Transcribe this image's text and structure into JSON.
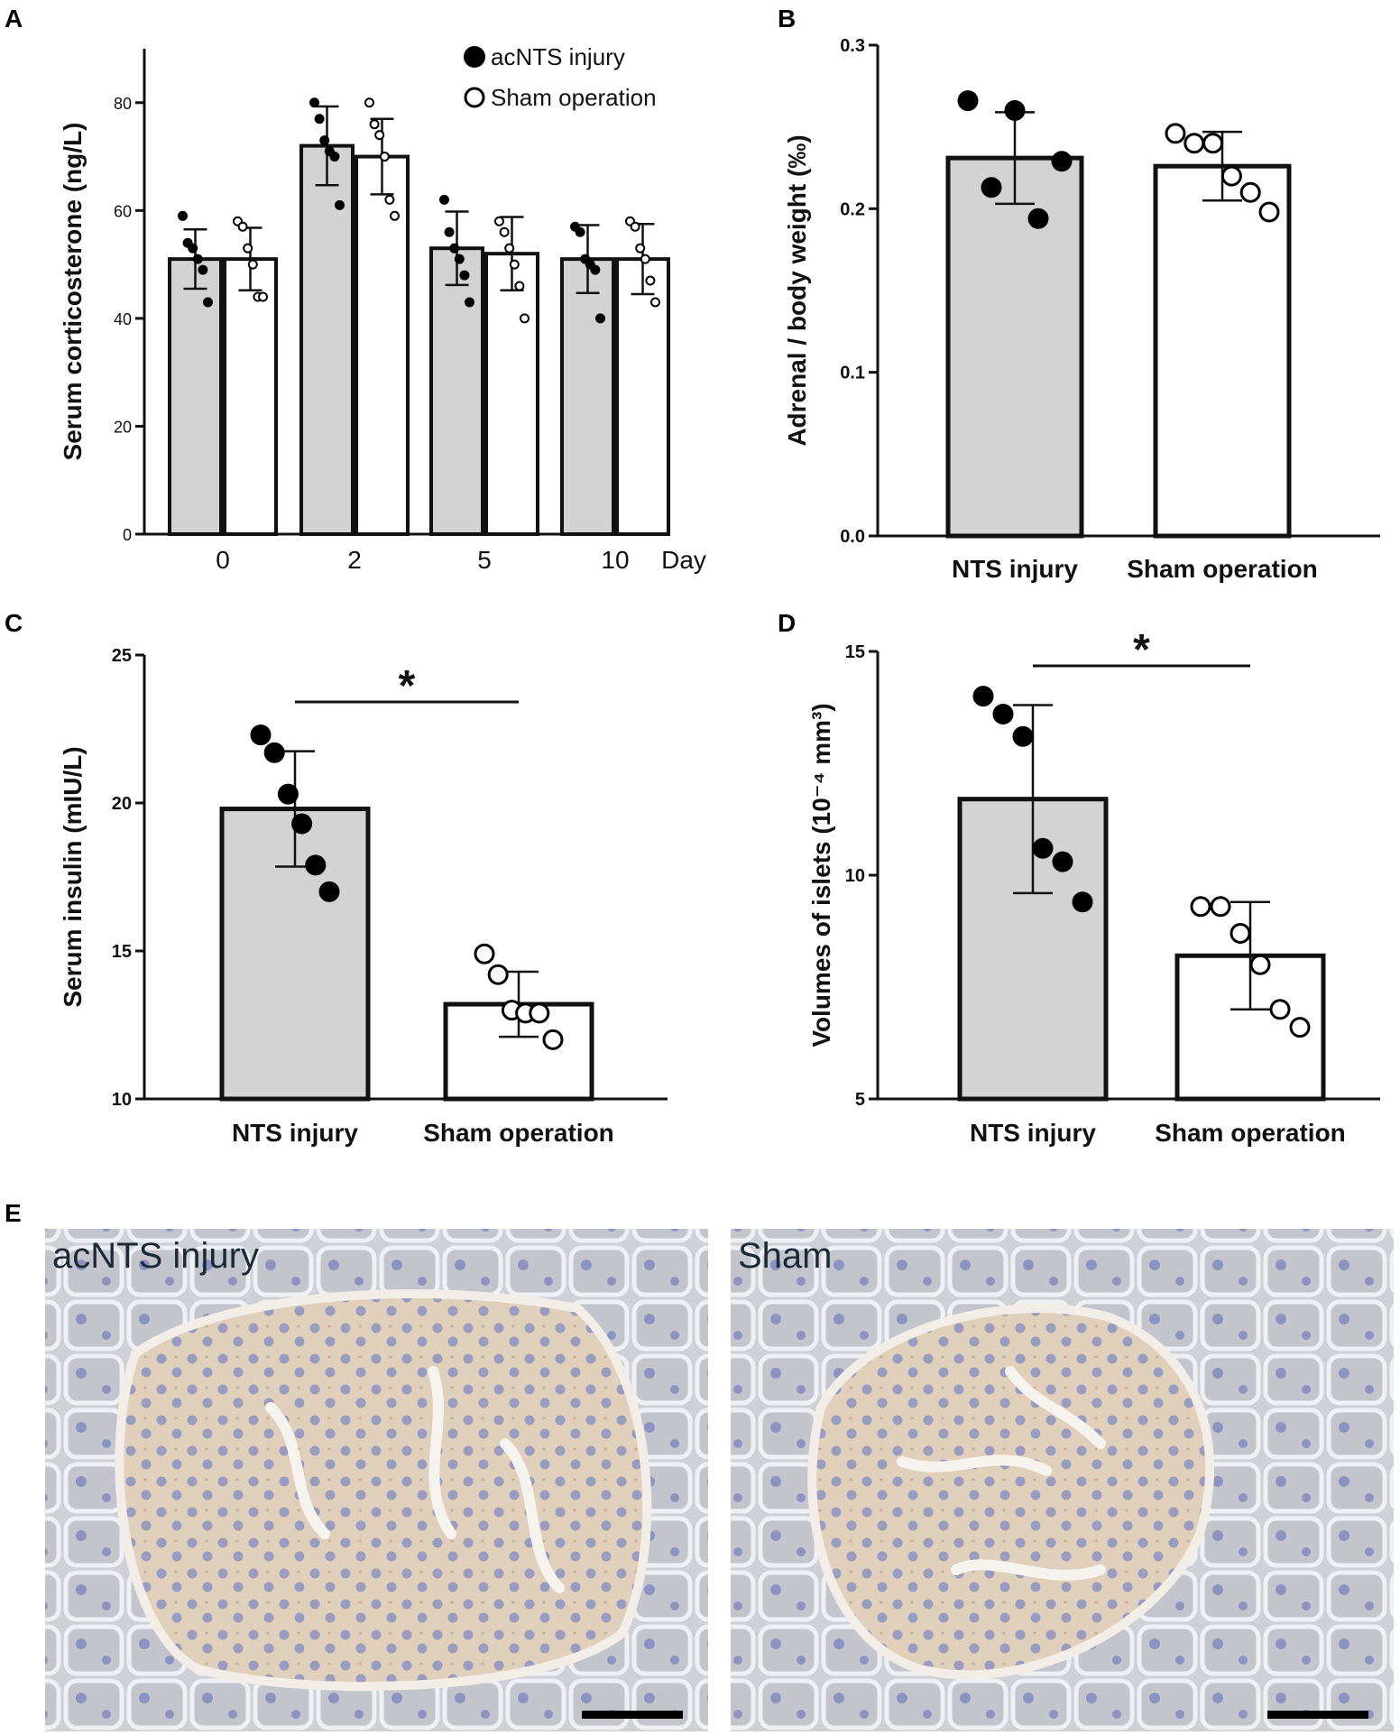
{
  "panels": {
    "A": "A",
    "B": "B",
    "C": "C",
    "D": "D",
    "E": "E"
  },
  "micrographs": [
    {
      "label": "acNTS injury"
    },
    {
      "label": "Sham"
    }
  ],
  "colors": {
    "injury_bar": "#d3d3d3",
    "sham_bar": "#ffffff",
    "axis": "#111111",
    "tissue_bg": "#ddd5cc",
    "islet": "#e2d2bd",
    "acinar": "#c9c9cf",
    "nuclei": "#8e93bd",
    "scale_bar": "#000000"
  },
  "chart_data": [
    {
      "id": "A",
      "type": "bar",
      "ylabel": "Serum corticosterone (ng/L)",
      "xlabel": "Day",
      "categories": [
        "0",
        "2",
        "5",
        "10"
      ],
      "ylim": [
        0,
        90
      ],
      "yticks": [
        0,
        20,
        40,
        60,
        80
      ],
      "legend": [
        "acNTS injury",
        "Sham operation"
      ],
      "legend_position": "top-right",
      "series": [
        {
          "name": "acNTS injury",
          "values": [
            51,
            72,
            53,
            51
          ],
          "sd": [
            5.5,
            7.3,
            6.8,
            6.3
          ],
          "points": [
            [
              59,
              54,
              53,
              51,
              49,
              43
            ],
            [
              80,
              77,
              73,
              71,
              70,
              61
            ],
            [
              62,
              56,
              53,
              51,
              48,
              43
            ],
            [
              57,
              56,
              51,
              50,
              49,
              40
            ]
          ]
        },
        {
          "name": "Sham operation",
          "values": [
            51,
            70,
            52,
            51
          ],
          "sd": [
            5.8,
            7.0,
            6.8,
            6.5
          ],
          "points": [
            [
              58,
              57,
              53,
              50,
              44,
              44
            ],
            [
              80,
              76,
              74,
              70,
              62,
              59
            ],
            [
              58,
              56,
              53,
              50,
              46,
              40
            ],
            [
              58,
              57,
              53,
              51,
              47,
              43
            ]
          ]
        }
      ]
    },
    {
      "id": "B",
      "type": "bar",
      "ylabel": "Adrenal / body weight (‰)",
      "categories": [
        "NTS injury",
        "Sham operation"
      ],
      "ylim": [
        0,
        0.3
      ],
      "yticks": [
        "0.0",
        "0.1",
        "0.2",
        "0.3"
      ],
      "values": [
        0.231,
        0.226
      ],
      "sd": [
        0.028,
        0.021
      ],
      "points": [
        [
          0.266,
          0.26,
          0.229,
          0.213,
          0.194
        ],
        [
          0.246,
          0.24,
          0.24,
          0.22,
          0.21,
          0.198
        ]
      ]
    },
    {
      "id": "C",
      "type": "bar",
      "ylabel": "Serum insulin (mIU/L)",
      "categories": [
        "NTS injury",
        "Sham operation"
      ],
      "ylim": [
        10,
        25
      ],
      "yticks": [
        10,
        15,
        20,
        25
      ],
      "values": [
        19.8,
        13.2
      ],
      "sd": [
        1.95,
        1.1
      ],
      "points": [
        [
          22.3,
          21.7,
          20.3,
          19.3,
          17.9,
          17.0
        ],
        [
          14.9,
          14.2,
          13.0,
          12.9,
          12.9,
          12.0
        ]
      ],
      "significance": "*"
    },
    {
      "id": "D",
      "type": "bar",
      "ylabel": "Volumes of islets (10⁻⁴ mm³)",
      "categories": [
        "NTS injury",
        "Sham operation"
      ],
      "ylim": [
        5,
        15
      ],
      "yticks": [
        5,
        10,
        15
      ],
      "values": [
        11.7,
        8.2
      ],
      "sd": [
        2.1,
        1.2
      ],
      "points": [
        [
          14.0,
          13.6,
          13.1,
          10.6,
          10.3,
          9.4
        ],
        [
          9.3,
          9.3,
          8.7,
          8.0,
          7.0,
          6.6
        ]
      ],
      "significance": "*"
    }
  ]
}
